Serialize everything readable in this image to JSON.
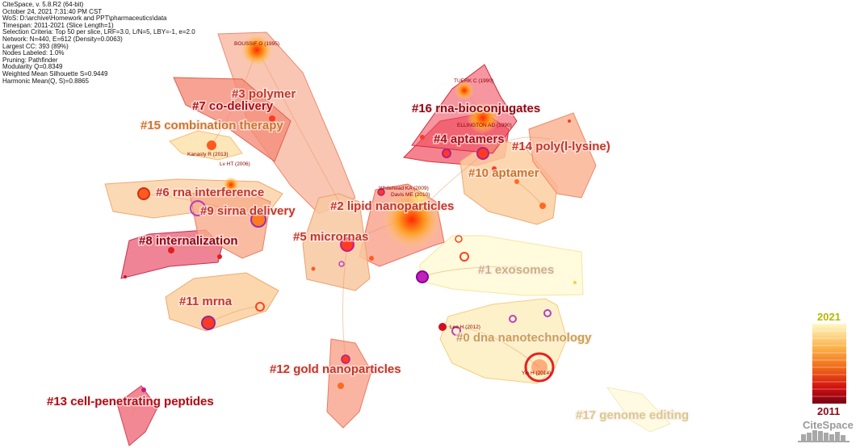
{
  "info": [
    "CiteSpace, v. 5.8.R2 (64-bit)",
    "October 24, 2021 7:31:40 PM CST",
    "WoS: D:\\archive\\Homework and PPT\\pharmaceutics\\data",
    "Timespan: 2011-2021 (Slice Length=1)",
    "Selection Criteria: Top 50 per slice, LRF=3.0, L/N=5, LBY=-1, e=2.0",
    "Network: N=440, E=612 (Density=0.0063)",
    "Largest CC: 393 (89%)",
    "Nodes Labeled: 1.0%",
    "Pruning: Pathfinder",
    "Modularity Q=0.8349",
    "Weighted Mean Silhouette S=0.9449",
    "Harmonic Mean(Q, S)=0.8865"
  ],
  "clusters": [
    {
      "label": "#0 dna nanotechnology",
      "color": "#c9a24a"
    },
    {
      "label": "#1 exosomes",
      "color": "#c8b47a"
    },
    {
      "label": "#2 lipid nanoparticles",
      "color": "#c0392b"
    },
    {
      "label": "#3 polymer",
      "color": "#c0392b"
    },
    {
      "label": "#4 aptamers",
      "color": "#a8101a"
    },
    {
      "label": "#5 micrornas",
      "color": "#c0392b"
    },
    {
      "label": "#6 rna interference",
      "color": "#c0392b"
    },
    {
      "label": "#7 co-delivery",
      "color": "#a8101a"
    },
    {
      "label": "#8 internalization",
      "color": "#8b0a14"
    },
    {
      "label": "#9 sirna delivery",
      "color": "#c0392b"
    },
    {
      "label": "#10 aptamer",
      "color": "#c9782a"
    },
    {
      "label": "#11 mrna",
      "color": "#c0392b"
    },
    {
      "label": "#12 gold nanoparticles",
      "color": "#c0392b"
    },
    {
      "label": "#13 cell-penetrating peptides",
      "color": "#a8101a"
    },
    {
      "label": "#14 poly(l-lysine)",
      "color": "#c0392b"
    },
    {
      "label": "#15 combination therapy",
      "color": "#c9782a"
    },
    {
      "label": "#16 rna-bioconjugates",
      "color": "#8b0a14"
    },
    {
      "label": "#17 genome editing",
      "color": "#d4cc8a"
    }
  ],
  "node_labels": [
    "BOUSSIF O (1995)",
    "TUERK C (1990)",
    "ELLINGTON AD (1990)",
    "Kanasty R (2013)",
    "Lv HT (2006)",
    "Whitehead KA (2009)",
    "Davis ME (2010)",
    "Lee H (2012)",
    "Yin H (2014)"
  ],
  "legend": {
    "year_top": "2021",
    "year_bottom": "2011",
    "top_color": "#b5b800",
    "bottom_color": "#8b0a14",
    "brand": "CiteSpace"
  }
}
